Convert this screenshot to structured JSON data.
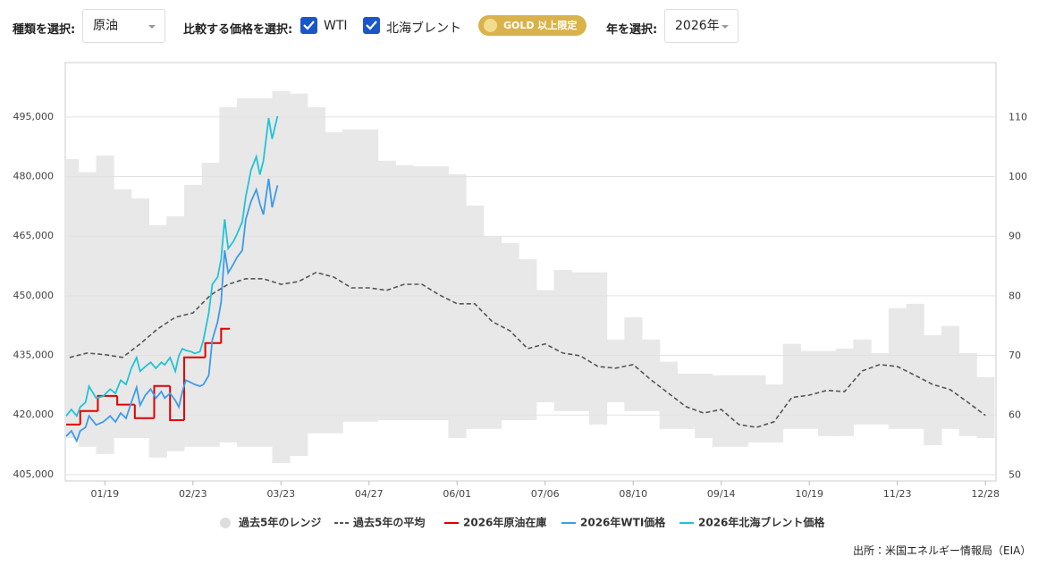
{
  "controls": {
    "type_label": "種類を選択:",
    "type_value": "原油",
    "compare_label": "比較する価格を選択:",
    "wti": "WTI",
    "brent": "北海ブレント",
    "gold": "GOLD 以上限定",
    "year_label": "年を選択:",
    "year_value": "2026年"
  },
  "source": "出所：米国エネルギー情報局（EIA）",
  "chart_data": {
    "type": "line",
    "x": [
      0,
      1,
      2,
      3,
      4,
      5,
      6,
      7,
      8,
      9,
      10,
      11,
      12,
      13,
      14,
      15,
      16,
      17,
      18,
      19,
      20,
      21,
      22,
      23,
      24,
      25,
      26,
      27,
      28,
      29,
      30,
      31,
      32,
      33,
      34,
      35,
      36,
      37,
      38,
      39,
      40,
      41,
      42,
      43,
      44,
      45,
      46,
      47,
      48,
      49,
      50,
      51,
      52
    ],
    "xlim": [
      -0.25,
      52.6
    ],
    "xticks": [
      {
        "value": 2,
        "label": "01/19"
      },
      {
        "value": 7,
        "label": "02/23"
      },
      {
        "value": 12,
        "label": "03/23"
      },
      {
        "value": 17,
        "label": "04/27"
      },
      {
        "value": 22,
        "label": "06/01"
      },
      {
        "value": 27,
        "label": "07/06"
      },
      {
        "value": 32,
        "label": "08/10"
      },
      {
        "value": 37,
        "label": "09/14"
      },
      {
        "value": 42,
        "label": "10/19"
      },
      {
        "value": 47,
        "label": "11/23"
      },
      {
        "value": 52,
        "label": "12/28"
      }
    ],
    "ylim": [
      403400,
      508700
    ],
    "yticks": [
      {
        "value": 405000,
        "label": "405,000"
      },
      {
        "value": 420000,
        "label": "420,000"
      },
      {
        "value": 435000,
        "label": "435,000"
      },
      {
        "value": 450000,
        "label": "450,000"
      },
      {
        "value": 465000,
        "label": "465,000"
      },
      {
        "value": 480000,
        "label": "480,000"
      },
      {
        "value": 495000,
        "label": "495,000"
      }
    ],
    "y2lim": [
      49,
      119.2
    ],
    "y2ticks": [
      50,
      60,
      70,
      80,
      90,
      100,
      110
    ],
    "grid": true,
    "series": [
      {
        "name": "過去5年のレンジ",
        "style": "range",
        "color": "#e8e8e8",
        "high": [
          484400,
          481100,
          485300,
          476800,
          474500,
          467800,
          470000,
          477900,
          483500,
          497500,
          499700,
          499700,
          501500,
          500900,
          497500,
          491200,
          491900,
          491900,
          484000,
          482900,
          482600,
          482600,
          480600,
          472700,
          464900,
          463300,
          459200,
          451400,
          456500,
          455900,
          455900,
          439000,
          444600,
          439000,
          433400,
          430400,
          430400,
          430000,
          430000,
          430000,
          427700,
          437900,
          436100,
          436100,
          436700,
          439000,
          435600,
          446900,
          448000,
          440100,
          442400,
          435600,
          429500
        ],
        "low": [
          414200,
          412000,
          410200,
          414200,
          414200,
          409300,
          410900,
          412000,
          412000,
          413100,
          412000,
          412000,
          407900,
          409700,
          415400,
          415400,
          418300,
          418300,
          418700,
          418700,
          418700,
          418700,
          414200,
          416500,
          416500,
          418700,
          418700,
          423200,
          421000,
          421000,
          417600,
          423200,
          421000,
          421000,
          416500,
          416500,
          414200,
          412000,
          412000,
          413100,
          413100,
          416500,
          416500,
          414700,
          414700,
          417600,
          417600,
          416500,
          416500,
          412400,
          416500,
          414700,
          414200
        ]
      },
      {
        "name": "過去5年の平均",
        "style": "dashed",
        "color": "#555555",
        "values": [
          434500,
          435600,
          435200,
          434500,
          437900,
          441700,
          444600,
          445700,
          450200,
          452900,
          454300,
          454300,
          452900,
          453600,
          455900,
          454700,
          452000,
          452000,
          451400,
          452900,
          452900,
          450200,
          448000,
          448000,
          443500,
          441200,
          436700,
          437900,
          435600,
          434900,
          432200,
          431800,
          432700,
          428900,
          425500,
          422100,
          420500,
          421400,
          417600,
          416900,
          418300,
          424400,
          425000,
          426200,
          425900,
          431100,
          432700,
          432200,
          430000,
          427700,
          426400,
          423200,
          419900
        ]
      },
      {
        "name": "2026年原油在庫",
        "style": "step",
        "color": "#e00000",
        "x": [
          -0.2,
          0.6,
          1.6,
          2.7,
          3.7,
          4.8,
          5.7,
          6.5,
          7.7,
          8.6
        ],
        "values": [
          417600,
          421000,
          424800,
          422600,
          419200,
          427300,
          418700,
          434500,
          438100,
          441700
        ]
      },
      {
        "name": "2026年WTI価格",
        "style": "line",
        "color": "#3d9be9",
        "axis": "y2",
        "x": [
          -0.2,
          0.1,
          0.4,
          0.6,
          0.9,
          1.1,
          1.5,
          1.9,
          2.3,
          2.6,
          2.9,
          3.2,
          3.5,
          3.8,
          4.0,
          4.3,
          4.6,
          4.9,
          5.2,
          5.4,
          5.7,
          6.0,
          6.2,
          6.4,
          6.6,
          6.9,
          7.1,
          7.4,
          7.6,
          7.9,
          8.1,
          8.4,
          8.6,
          8.8,
          9.0,
          9.3,
          9.5,
          9.8,
          10.0,
          10.3,
          10.6,
          10.8,
          11.0,
          11.3,
          11.5,
          11.8
        ],
        "values": [
          56.5,
          57.4,
          55.7,
          57.4,
          58.0,
          59.9,
          58.4,
          58.9,
          59.9,
          58.9,
          60.4,
          59.5,
          62.2,
          64.7,
          61.7,
          63.4,
          64.4,
          62.9,
          64.0,
          62.9,
          63.7,
          62.5,
          61.4,
          64.0,
          65.9,
          65.5,
          65.2,
          64.9,
          65.2,
          66.7,
          72.7,
          75.7,
          79.0,
          87.7,
          83.9,
          85.4,
          86.5,
          87.7,
          92.9,
          95.9,
          97.9,
          95.5,
          93.7,
          99.7,
          94.9,
          98.6
        ]
      },
      {
        "name": "2026年北海ブレント価格",
        "style": "line",
        "color": "#22c3d6",
        "axis": "y2",
        "x": [
          -0.2,
          0.1,
          0.4,
          0.6,
          0.9,
          1.1,
          1.5,
          1.9,
          2.3,
          2.6,
          2.9,
          3.2,
          3.5,
          3.8,
          4.0,
          4.3,
          4.6,
          4.9,
          5.2,
          5.4,
          5.7,
          6.0,
          6.2,
          6.4,
          6.6,
          6.9,
          7.1,
          7.4,
          7.6,
          7.9,
          8.1,
          8.4,
          8.6,
          8.8,
          9.0,
          9.3,
          9.5,
          9.8,
          10.0,
          10.3,
          10.6,
          10.8,
          11.0,
          11.3,
          11.5,
          11.8
        ],
        "values": [
          59.9,
          61.0,
          59.9,
          61.4,
          62.2,
          64.9,
          62.9,
          63.2,
          64.4,
          63.7,
          65.9,
          65.2,
          67.9,
          69.7,
          67.4,
          68.2,
          68.9,
          67.9,
          68.9,
          68.5,
          69.7,
          67.4,
          70.0,
          71.2,
          70.9,
          70.7,
          70.4,
          70.7,
          72.7,
          77.2,
          82.0,
          83.2,
          86.2,
          92.9,
          88.0,
          89.2,
          90.4,
          92.5,
          96.7,
          101.2,
          103.4,
          100.4,
          102.7,
          109.9,
          106.4,
          110.2
        ]
      }
    ]
  }
}
